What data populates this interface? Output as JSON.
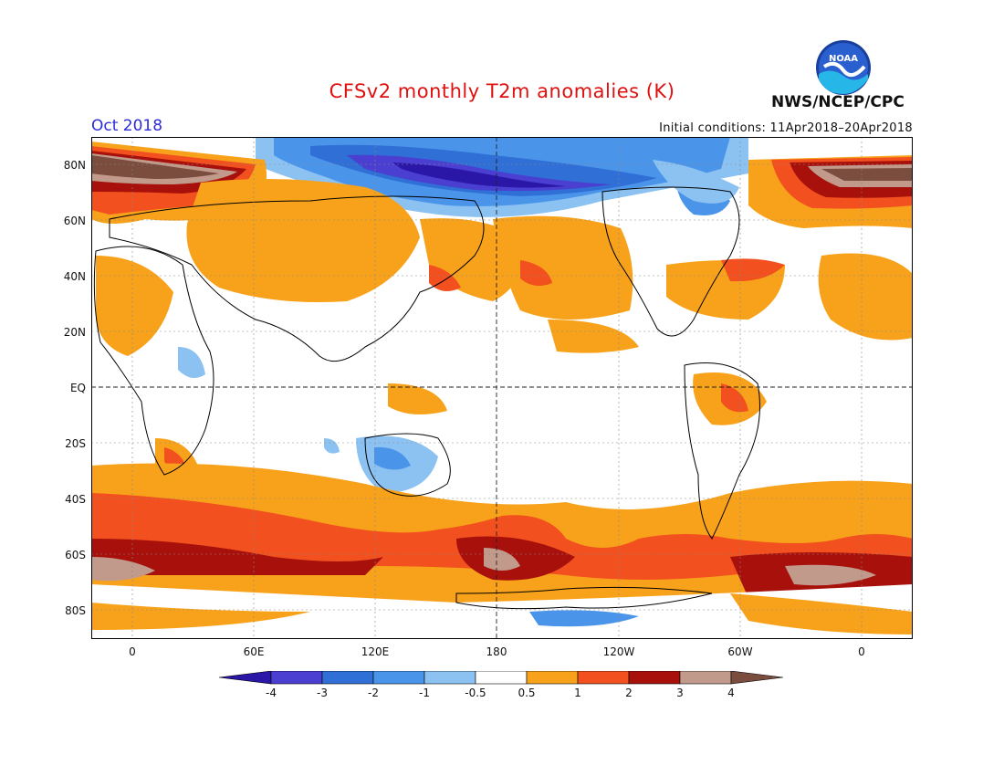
{
  "header": {
    "title": "CFSv2 monthly T2m anomalies (K)",
    "month": "Oct 2018",
    "initial_conditions": "Initial conditions: 11Apr2018–20Apr2018",
    "organization": "NWS/NCEP/CPC",
    "logo_text": "NOAA"
  },
  "axes": {
    "lat_labels": [
      "80N",
      "60N",
      "40N",
      "20N",
      "EQ",
      "20S",
      "40S",
      "60S",
      "80S"
    ],
    "lon_labels": [
      "0",
      "60E",
      "120E",
      "180",
      "120W",
      "60W",
      "0"
    ]
  },
  "colorbar": {
    "labels": [
      "-4",
      "-3",
      "-2",
      "-1",
      "-0.5",
      "0.5",
      "1",
      "2",
      "3",
      "4"
    ],
    "colors": [
      "#2a17a8",
      "#4a3fd0",
      "#2f6fd6",
      "#4a95ea",
      "#8cc2f2",
      "#ffffff",
      "#f7a21a",
      "#f2501e",
      "#a8100c",
      "#c19a8c",
      "#7a4d3e"
    ]
  },
  "map": {
    "projection": "cylindrical equidistant, centered 180",
    "grid": "dotted",
    "dashed_reference_lines": [
      "EQ",
      "180"
    ]
  }
}
